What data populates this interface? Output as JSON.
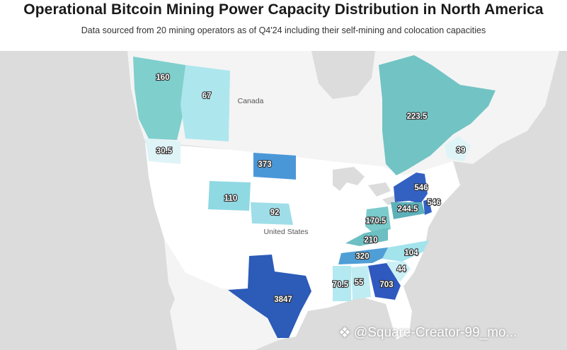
{
  "header": {
    "title": "Operational Bitcoin Mining Power Capacity Distribution in North America",
    "subtitle": "Data sourced from 20 mining operators as of Q4'24 including their self-mining and colocation capacities"
  },
  "map_labels": {
    "canada": "Canada",
    "united_states": "United States"
  },
  "regions": [
    {
      "name": "British Columbia",
      "value": "160",
      "color": "#7fcfcd"
    },
    {
      "name": "Alberta",
      "value": "67",
      "color": "#aee6ee"
    },
    {
      "name": "Quebec",
      "value": "223.5",
      "color": "#72c3c4"
    },
    {
      "name": "New Brunswick",
      "value": "39",
      "color": "#dff4f7"
    },
    {
      "name": "Washington",
      "value": "30.5",
      "color": "#dff4f7"
    },
    {
      "name": "North Dakota",
      "value": "373",
      "color": "#4a97d8"
    },
    {
      "name": "Wyoming",
      "value": "110",
      "color": "#8fd9e3"
    },
    {
      "name": "Nebraska",
      "value": "92",
      "color": "#9fdee8"
    },
    {
      "name": "New York",
      "value": "546",
      "color": "#3361c2"
    },
    {
      "name": "Pennsylvania",
      "value": "244.5",
      "color": "#5cb1b9"
    },
    {
      "name": "New Jersey",
      "value": "546",
      "color": "#3361c2"
    },
    {
      "name": "Ohio",
      "value": "170.5",
      "color": "#7acbcb"
    },
    {
      "name": "Kentucky",
      "value": "210",
      "color": "#6cbfc2"
    },
    {
      "name": "Tennessee",
      "value": "320",
      "color": "#4f9ed6"
    },
    {
      "name": "North Carolina",
      "value": "104",
      "color": "#a2e3ec"
    },
    {
      "name": "South Carolina",
      "value": "44",
      "color": "#ccf0f5"
    },
    {
      "name": "Mississippi",
      "value": "70.5",
      "color": "#b3e9f0"
    },
    {
      "name": "Alabama",
      "value": "55",
      "color": "#bfecf2"
    },
    {
      "name": "Georgia",
      "value": "703",
      "color": "#2f59be"
    },
    {
      "name": "Texas",
      "value": "3847",
      "color": "#2c5bb8"
    }
  ],
  "watermark": {
    "text": "@Square-Creator-99_mo...",
    "icon": "diamond-logo-icon"
  }
}
